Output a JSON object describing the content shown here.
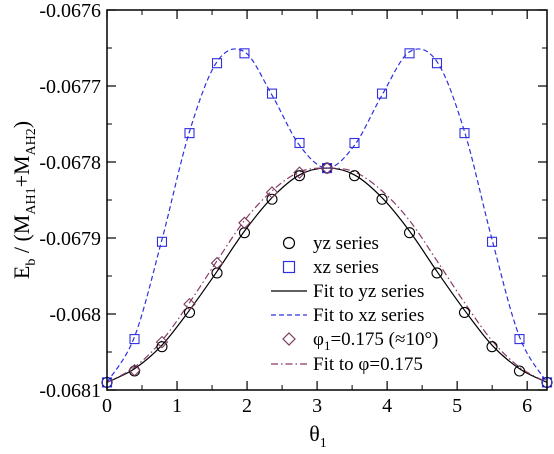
{
  "chart_data": {
    "type": "scatter",
    "xlabel": "θ",
    "xlabel_sub": "1",
    "ylabel_parts": [
      "E",
      "b",
      " / (M",
      "AH1",
      "+M",
      "AH2",
      ")"
    ],
    "xlim": [
      0,
      6.283
    ],
    "ylim": [
      -0.0681,
      -0.0676
    ],
    "xticks": [
      0,
      1,
      2,
      3,
      4,
      5,
      6
    ],
    "xtick_labels": [
      "0",
      "1",
      "2",
      "3",
      "4",
      "5",
      "6"
    ],
    "yticks": [
      -0.0681,
      -0.068,
      -0.0679,
      -0.0678,
      -0.0677,
      -0.0676
    ],
    "ytick_labels": [
      "-0.0681",
      "-0.068",
      "-0.0679",
      "-0.0678",
      "-0.0677",
      "-0.0676"
    ],
    "legend_position": "center-right",
    "series": [
      {
        "name": "yz series",
        "kind": "points",
        "marker": "circle",
        "color": "#000000",
        "x": [
          0,
          0.393,
          0.785,
          1.178,
          1.571,
          1.963,
          2.356,
          2.749,
          3.142,
          3.534,
          3.927,
          4.32,
          4.712,
          5.105,
          5.498,
          5.89,
          6.283
        ],
        "y": [
          -0.06809,
          -0.068075,
          -0.068043,
          -0.067998,
          -0.067946,
          -0.067893,
          -0.067849,
          -0.067818,
          -0.067808,
          -0.067818,
          -0.067849,
          -0.067893,
          -0.067946,
          -0.067998,
          -0.068043,
          -0.068075,
          -0.06809
        ]
      },
      {
        "name": "xz series",
        "kind": "points",
        "marker": "square",
        "color": "#3030e0",
        "x": [
          0,
          0.393,
          0.785,
          1.178,
          1.571,
          1.963,
          2.356,
          2.749,
          3.142,
          3.534,
          3.927,
          4.32,
          4.712,
          5.105,
          5.498,
          5.89,
          6.283
        ],
        "y": [
          -0.06809,
          -0.068033,
          -0.067905,
          -0.067762,
          -0.06767,
          -0.067657,
          -0.06771,
          -0.067775,
          -0.067808,
          -0.067775,
          -0.06771,
          -0.067657,
          -0.06767,
          -0.067762,
          -0.067905,
          -0.068033,
          -0.06809
        ]
      },
      {
        "name": "Fit to yz series",
        "kind": "line",
        "dash": "solid",
        "color": "#000000",
        "x": [
          0,
          0.393,
          0.785,
          1.178,
          1.571,
          1.963,
          2.356,
          2.749,
          3.142,
          3.534,
          3.927,
          4.32,
          4.712,
          5.105,
          5.498,
          5.89,
          6.283
        ],
        "y": [
          -0.06809,
          -0.068072,
          -0.068041,
          -0.067995,
          -0.067944,
          -0.067891,
          -0.067847,
          -0.067817,
          -0.067808,
          -0.067817,
          -0.067847,
          -0.067891,
          -0.067944,
          -0.067995,
          -0.068041,
          -0.068072,
          -0.06809
        ]
      },
      {
        "name": "Fit to xz series",
        "kind": "line",
        "dash": "dashed",
        "color": "#3030e0",
        "x": [
          0,
          0.393,
          0.785,
          1.178,
          1.571,
          1.963,
          2.356,
          2.749,
          3.142,
          3.534,
          3.927,
          4.32,
          4.712,
          5.105,
          5.498,
          5.89,
          6.283
        ],
        "y": [
          -0.06809,
          -0.06803,
          -0.067902,
          -0.06776,
          -0.067668,
          -0.067655,
          -0.067712,
          -0.067778,
          -0.067808,
          -0.067778,
          -0.067712,
          -0.067655,
          -0.067668,
          -0.06776,
          -0.067902,
          -0.06803,
          -0.06809
        ]
      },
      {
        "name_parts": [
          "φ",
          "1",
          "=0.175 (≈10°)"
        ],
        "kind": "points",
        "marker": "diamond",
        "color": "#7a3b5a",
        "x": [
          0.393,
          0.785,
          1.178,
          1.571,
          1.963,
          2.356,
          2.749,
          3.142
        ],
        "y": [
          -0.068074,
          -0.068037,
          -0.067987,
          -0.067933,
          -0.06788,
          -0.06784,
          -0.067814,
          -0.067808
        ]
      },
      {
        "name": "Fit to φ=0.175",
        "kind": "line",
        "dash": "dashdot",
        "color": "#8a3a6a",
        "x": [
          0,
          0.393,
          0.785,
          1.178,
          1.571,
          1.963,
          2.356,
          2.749,
          3.142,
          3.534,
          3.927,
          4.32,
          4.712,
          5.105,
          5.498,
          5.89,
          6.283
        ],
        "y": [
          -0.06809,
          -0.06807,
          -0.068035,
          -0.067985,
          -0.06793,
          -0.067877,
          -0.067838,
          -0.067813,
          -0.067808,
          -0.067813,
          -0.067838,
          -0.067877,
          -0.06793,
          -0.067985,
          -0.068035,
          -0.06807,
          -0.06809
        ]
      }
    ]
  }
}
